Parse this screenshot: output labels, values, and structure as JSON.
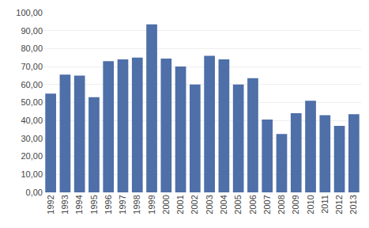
{
  "chart_data": {
    "type": "bar",
    "categories": [
      "1992",
      "1993",
      "1994",
      "1995",
      "1996",
      "1997",
      "1998",
      "1999",
      "2000",
      "2001",
      "2002",
      "2003",
      "2004",
      "2005",
      "2006",
      "2007",
      "2008",
      "2009",
      "2010",
      "2011",
      "2012",
      "2013"
    ],
    "values": [
      55.0,
      65.5,
      65.0,
      53.0,
      73.0,
      74.0,
      75.0,
      93.5,
      74.5,
      70.0,
      60.0,
      76.0,
      74.0,
      60.0,
      63.5,
      40.5,
      32.5,
      44.0,
      51.0,
      43.0,
      37.0,
      43.5
    ],
    "color": "#4E6FA8",
    "ylim": [
      0,
      100
    ],
    "yticks": [
      {
        "value": 0,
        "label": "0,00"
      },
      {
        "value": 10,
        "label": "10,00"
      },
      {
        "value": 20,
        "label": "20,00"
      },
      {
        "value": 30,
        "label": "30,00"
      },
      {
        "value": 40,
        "label": "40,00"
      },
      {
        "value": 50,
        "label": "50,00"
      },
      {
        "value": 60,
        "label": "60,00"
      },
      {
        "value": 70,
        "label": "70,00"
      },
      {
        "value": 80,
        "label": "80,00"
      },
      {
        "value": 90,
        "label": "90,00"
      },
      {
        "value": 100,
        "label": "100,00"
      }
    ],
    "grid": true
  }
}
